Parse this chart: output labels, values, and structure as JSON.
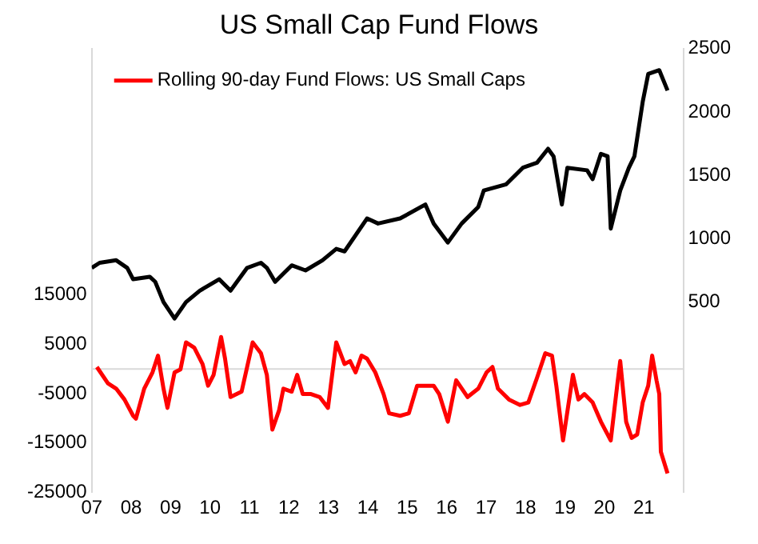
{
  "chart_data": {
    "type": "line",
    "title": "US Small Cap Fund Flows",
    "x": [
      2007.13,
      2007.41,
      2007.62,
      2007.83,
      2008.05,
      2008.12,
      2008.33,
      2008.54,
      2008.68,
      2008.82,
      2008.92,
      2009.1,
      2009.25,
      2009.39,
      2009.6,
      2009.81,
      2009.95,
      2010.09,
      2010.28,
      2010.38,
      2010.52,
      2010.8,
      2011.08,
      2011.29,
      2011.44,
      2011.58,
      2011.75,
      2011.86,
      2012.07,
      2012.21,
      2012.35,
      2012.56,
      2012.78,
      2012.99,
      2013.2,
      2013.41,
      2013.55,
      2013.69,
      2013.84,
      2013.98,
      2014.19,
      2014.4,
      2014.54,
      2014.82,
      2015.04,
      2015.25,
      2015.67,
      2015.81,
      2016.03,
      2016.24,
      2016.53,
      2016.8,
      2017.01,
      2017.16,
      2017.3,
      2017.58,
      2017.86,
      2018.07,
      2018.29,
      2018.5,
      2018.67,
      2018.78,
      2018.95,
      2019.2,
      2019.34,
      2019.49,
      2019.7,
      2019.91,
      2020.16,
      2020.33,
      2020.4,
      2020.55,
      2020.69,
      2020.83,
      2020.97,
      2021.11,
      2021.21,
      2021.32,
      2021.39,
      2021.43,
      2021.6
    ],
    "series": [
      {
        "name": "Rolling 90-day Fund Flows: US Small Caps",
        "color": "#ff0000",
        "values": [
          400,
          -2900,
          -4000,
          -6200,
          -9500,
          -10100,
          -4000,
          -700,
          2700,
          -4000,
          -7900,
          -700,
          -100,
          5400,
          4300,
          1000,
          -3400,
          -1200,
          6500,
          2100,
          -5700,
          -4600,
          5400,
          3200,
          -1200,
          -12300,
          -8400,
          -4000,
          -4600,
          -1200,
          -5100,
          -5100,
          -5700,
          -7900,
          5400,
          1000,
          1600,
          -700,
          2700,
          2100,
          -700,
          -5100,
          -9000,
          -9500,
          -9000,
          -3400,
          -3400,
          -5100,
          -10700,
          -2300,
          -5700,
          -4000,
          -700,
          400,
          -4000,
          -6200,
          -7300,
          -6800,
          -1800,
          3200,
          2700,
          -3400,
          -14500,
          -1200,
          -6200,
          -5100,
          -6800,
          -10700,
          -14500,
          -2900,
          1600,
          -10700,
          -14000,
          -13300,
          -6800,
          -3400,
          2700,
          -2300,
          -5100,
          -16800,
          -21200
        ]
      },
      {
        "color": "#000000",
        "axis": "y2",
        "x": [
          2007.0,
          2007.2,
          2007.62,
          2007.9,
          2008.05,
          2008.47,
          2008.61,
          2008.82,
          2009.1,
          2009.39,
          2009.74,
          2010.23,
          2010.52,
          2010.94,
          2011.29,
          2011.44,
          2011.65,
          2012.07,
          2012.42,
          2012.85,
          2013.2,
          2013.41,
          2013.98,
          2014.26,
          2014.82,
          2015.46,
          2015.67,
          2016.03,
          2016.38,
          2016.8,
          2016.94,
          2017.51,
          2017.93,
          2018.29,
          2018.57,
          2018.71,
          2018.92,
          2019.06,
          2019.56,
          2019.7,
          2019.91,
          2020.08,
          2020.16,
          2020.4,
          2020.62,
          2020.76,
          2020.97,
          2021.11,
          2021.39,
          2021.6
        ],
        "values": [
          770,
          810,
          830,
          770,
          680,
          700,
          660,
          500,
          370,
          500,
          590,
          680,
          590,
          770,
          810,
          770,
          660,
          790,
          750,
          830,
          920,
          900,
          1160,
          1120,
          1160,
          1270,
          1120,
          970,
          1120,
          1250,
          1380,
          1430,
          1560,
          1600,
          1710,
          1650,
          1270,
          1560,
          1540,
          1470,
          1670,
          1650,
          1080,
          1380,
          1560,
          1650,
          2080,
          2300,
          2330,
          2170
        ]
      }
    ],
    "xlim": [
      2007,
      2022
    ],
    "xticks": [
      {
        "value": 2007,
        "label": "07"
      },
      {
        "value": 2008,
        "label": "08"
      },
      {
        "value": 2009,
        "label": "09"
      },
      {
        "value": 2010,
        "label": "10"
      },
      {
        "value": 2011,
        "label": "11"
      },
      {
        "value": 2012,
        "label": "12"
      },
      {
        "value": 2013,
        "label": "13"
      },
      {
        "value": 2014,
        "label": "14"
      },
      {
        "value": 2015,
        "label": "15"
      },
      {
        "value": 2016,
        "label": "16"
      },
      {
        "value": 2017,
        "label": "17"
      },
      {
        "value": 2018,
        "label": "18"
      },
      {
        "value": 2019,
        "label": "19"
      },
      {
        "value": 2020,
        "label": "20"
      },
      {
        "value": 2021,
        "label": "21"
      }
    ],
    "ylim": [
      -25000,
      65000
    ],
    "yticks": [
      -25000,
      -15000,
      -5000,
      5000,
      15000
    ],
    "y2lim": [
      -1000,
      2500
    ],
    "y2ticks": [
      500,
      1000,
      1500,
      2000,
      2500
    ],
    "ref_lines": [
      {
        "axis": "y",
        "value": 0,
        "color": "#d9d9d9"
      }
    ],
    "legend": "top left",
    "grid": false,
    "marker": "none"
  }
}
